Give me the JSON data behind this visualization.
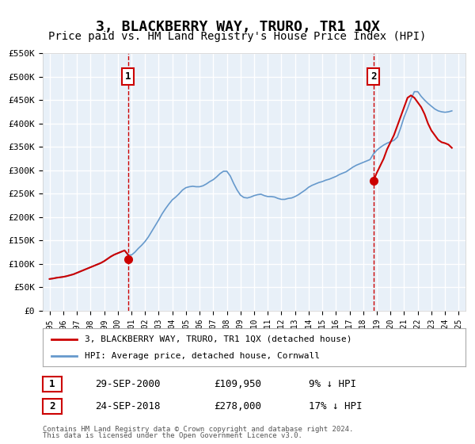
{
  "title": "3, BLACKBERRY WAY, TRURO, TR1 1QX",
  "subtitle": "Price paid vs. HM Land Registry's House Price Index (HPI)",
  "title_fontsize": 13,
  "subtitle_fontsize": 10,
  "background_color": "#ffffff",
  "plot_bg_color": "#e8f0f8",
  "grid_color": "#ffffff",
  "red_line_color": "#cc0000",
  "blue_line_color": "#6699cc",
  "marker_color": "#cc0000",
  "dashed_line_color": "#cc0000",
  "xlabel": "",
  "ylabel": "",
  "ylim": [
    0,
    550000
  ],
  "yticks": [
    0,
    50000,
    100000,
    150000,
    200000,
    250000,
    300000,
    350000,
    400000,
    450000,
    500000,
    550000
  ],
  "ytick_labels": [
    "£0",
    "£50K",
    "£100K",
    "£150K",
    "£200K",
    "£250K",
    "£300K",
    "£350K",
    "£400K",
    "£450K",
    "£500K",
    "£550K"
  ],
  "xlim_start": 1994.5,
  "xlim_end": 2025.5,
  "xticks": [
    1995,
    1996,
    1997,
    1998,
    1999,
    2000,
    2001,
    2002,
    2003,
    2004,
    2005,
    2006,
    2007,
    2008,
    2009,
    2010,
    2011,
    2012,
    2013,
    2014,
    2015,
    2016,
    2017,
    2018,
    2019,
    2020,
    2021,
    2022,
    2023,
    2024,
    2025
  ],
  "sale1_x": 2000.75,
  "sale1_y": 109950,
  "sale1_label": "1",
  "sale1_date": "29-SEP-2000",
  "sale1_price": "£109,950",
  "sale1_hpi": "9% ↓ HPI",
  "sale2_x": 2018.75,
  "sale2_y": 278000,
  "sale2_label": "2",
  "sale2_date": "24-SEP-2018",
  "sale2_price": "£278,000",
  "sale2_hpi": "17% ↓ HPI",
  "legend_line1": "3, BLACKBERRY WAY, TRURO, TR1 1QX (detached house)",
  "legend_line2": "HPI: Average price, detached house, Cornwall",
  "footer1": "Contains HM Land Registry data © Crown copyright and database right 2024.",
  "footer2": "This data is licensed under the Open Government Licence v3.0.",
  "hpi_x": [
    1995.0,
    1995.25,
    1995.5,
    1995.75,
    1996.0,
    1996.25,
    1996.5,
    1996.75,
    1997.0,
    1997.25,
    1997.5,
    1997.75,
    1998.0,
    1998.25,
    1998.5,
    1998.75,
    1999.0,
    1999.25,
    1999.5,
    1999.75,
    2000.0,
    2000.25,
    2000.5,
    2000.75,
    2001.0,
    2001.25,
    2001.5,
    2001.75,
    2002.0,
    2002.25,
    2002.5,
    2002.75,
    2003.0,
    2003.25,
    2003.5,
    2003.75,
    2004.0,
    2004.25,
    2004.5,
    2004.75,
    2005.0,
    2005.25,
    2005.5,
    2005.75,
    2006.0,
    2006.25,
    2006.5,
    2006.75,
    2007.0,
    2007.25,
    2007.5,
    2007.75,
    2008.0,
    2008.25,
    2008.5,
    2008.75,
    2009.0,
    2009.25,
    2009.5,
    2009.75,
    2010.0,
    2010.25,
    2010.5,
    2010.75,
    2011.0,
    2011.25,
    2011.5,
    2011.75,
    2012.0,
    2012.25,
    2012.5,
    2012.75,
    2013.0,
    2013.25,
    2013.5,
    2013.75,
    2014.0,
    2014.25,
    2014.5,
    2014.75,
    2015.0,
    2015.25,
    2015.5,
    2015.75,
    2016.0,
    2016.25,
    2016.5,
    2016.75,
    2017.0,
    2017.25,
    2017.5,
    2017.75,
    2018.0,
    2018.25,
    2018.5,
    2018.75,
    2019.0,
    2019.25,
    2019.5,
    2019.75,
    2020.0,
    2020.25,
    2020.5,
    2020.75,
    2021.0,
    2021.25,
    2021.5,
    2021.75,
    2022.0,
    2022.25,
    2022.5,
    2022.75,
    2023.0,
    2023.25,
    2023.5,
    2023.75,
    2024.0,
    2024.25,
    2024.5
  ],
  "hpi_y": [
    68000,
    69000,
    70500,
    71500,
    72500,
    74000,
    76000,
    78000,
    81000,
    84000,
    87000,
    90000,
    93000,
    96000,
    99000,
    102000,
    106000,
    111000,
    116000,
    120000,
    123000,
    126000,
    129000,
    120000,
    119000,
    125000,
    133000,
    140000,
    148000,
    158000,
    170000,
    182000,
    194000,
    207000,
    218000,
    228000,
    237000,
    243000,
    250000,
    258000,
    263000,
    265000,
    266000,
    265000,
    265000,
    267000,
    271000,
    276000,
    280000,
    286000,
    293000,
    298000,
    298000,
    288000,
    272000,
    258000,
    247000,
    242000,
    241000,
    243000,
    246000,
    248000,
    249000,
    246000,
    244000,
    244000,
    243000,
    240000,
    238000,
    238000,
    240000,
    241000,
    244000,
    248000,
    253000,
    258000,
    264000,
    268000,
    271000,
    274000,
    276000,
    279000,
    281000,
    284000,
    287000,
    291000,
    294000,
    297000,
    302000,
    307000,
    311000,
    314000,
    317000,
    320000,
    323000,
    335000,
    343000,
    349000,
    354000,
    358000,
    361000,
    364000,
    371000,
    391000,
    414000,
    432000,
    452000,
    468000,
    468000,
    458000,
    450000,
    443000,
    437000,
    431000,
    427000,
    425000,
    424000,
    425000,
    427000
  ],
  "hpi_red_x": [
    1995.0,
    1995.25,
    1995.5,
    1995.75,
    1996.0,
    1996.25,
    1996.5,
    1996.75,
    1997.0,
    1997.25,
    1997.5,
    1997.75,
    1998.0,
    1998.25,
    1998.5,
    1998.75,
    1999.0,
    1999.25,
    1999.5,
    1999.75,
    2000.0,
    2000.25,
    2000.5,
    2000.75
  ],
  "hpi_red_y": [
    68000,
    69000,
    70500,
    71500,
    72500,
    74000,
    76000,
    78000,
    81000,
    84000,
    87000,
    90000,
    93000,
    96000,
    99000,
    102000,
    106000,
    111000,
    116000,
    120000,
    123000,
    126000,
    129000,
    120000
  ],
  "hpi_red2_x": [
    2018.75,
    2019.0,
    2019.25,
    2019.5,
    2019.75,
    2020.0,
    2020.25,
    2020.5,
    2020.75,
    2021.0,
    2021.25,
    2021.5,
    2021.75,
    2022.0,
    2022.25,
    2022.5,
    2022.75,
    2023.0,
    2023.25,
    2023.5,
    2023.75,
    2024.0,
    2024.25,
    2024.5
  ],
  "hpi_red2_y": [
    278000,
    295000,
    310000,
    325000,
    345000,
    360000,
    375000,
    395000,
    415000,
    435000,
    455000,
    460000,
    455000,
    445000,
    435000,
    420000,
    400000,
    385000,
    375000,
    365000,
    360000,
    358000,
    355000,
    348000
  ]
}
